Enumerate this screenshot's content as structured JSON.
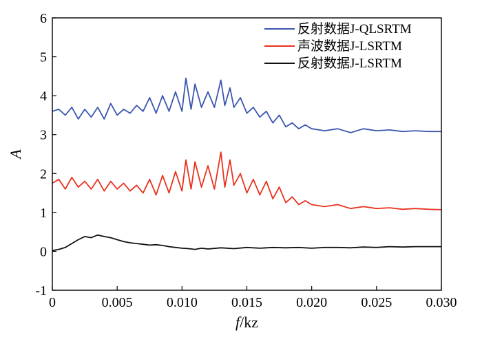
{
  "chart_data": {
    "type": "line",
    "title": "",
    "xlabel_italic": "f",
    "xlabel_unit": "/kz",
    "ylabel": "A",
    "xlim": [
      0,
      0.03
    ],
    "ylim": [
      -1,
      6
    ],
    "x_ticks": [
      "0",
      "0.005",
      "0.010",
      "0.015",
      "0.020",
      "0.025",
      "0.030"
    ],
    "y_ticks": [
      "-1",
      "0",
      "1",
      "2",
      "3",
      "4",
      "5",
      "6"
    ],
    "grid": false,
    "legend_position": "top-right",
    "series": [
      {
        "name": "反射数据J-QLSRTM",
        "color": "#3a56b0",
        "points": [
          [
            0,
            3.6
          ],
          [
            0.0005,
            3.65
          ],
          [
            0.001,
            3.5
          ],
          [
            0.0015,
            3.7
          ],
          [
            0.002,
            3.4
          ],
          [
            0.0025,
            3.65
          ],
          [
            0.003,
            3.45
          ],
          [
            0.0035,
            3.7
          ],
          [
            0.004,
            3.4
          ],
          [
            0.0045,
            3.8
          ],
          [
            0.005,
            3.5
          ],
          [
            0.0055,
            3.65
          ],
          [
            0.006,
            3.55
          ],
          [
            0.0065,
            3.75
          ],
          [
            0.007,
            3.6
          ],
          [
            0.0075,
            3.95
          ],
          [
            0.008,
            3.55
          ],
          [
            0.0085,
            4.0
          ],
          [
            0.009,
            3.6
          ],
          [
            0.0095,
            4.1
          ],
          [
            0.01,
            3.6
          ],
          [
            0.0103,
            4.45
          ],
          [
            0.0107,
            3.65
          ],
          [
            0.011,
            4.3
          ],
          [
            0.0115,
            3.7
          ],
          [
            0.012,
            4.1
          ],
          [
            0.0125,
            3.7
          ],
          [
            0.013,
            4.4
          ],
          [
            0.0133,
            3.75
          ],
          [
            0.0137,
            4.2
          ],
          [
            0.014,
            3.7
          ],
          [
            0.0145,
            3.95
          ],
          [
            0.015,
            3.55
          ],
          [
            0.0155,
            3.7
          ],
          [
            0.016,
            3.45
          ],
          [
            0.0165,
            3.6
          ],
          [
            0.017,
            3.3
          ],
          [
            0.0175,
            3.5
          ],
          [
            0.018,
            3.2
          ],
          [
            0.0185,
            3.3
          ],
          [
            0.019,
            3.15
          ],
          [
            0.0195,
            3.25
          ],
          [
            0.02,
            3.15
          ],
          [
            0.021,
            3.1
          ],
          [
            0.022,
            3.15
          ],
          [
            0.023,
            3.05
          ],
          [
            0.024,
            3.15
          ],
          [
            0.025,
            3.1
          ],
          [
            0.026,
            3.12
          ],
          [
            0.027,
            3.08
          ],
          [
            0.028,
            3.1
          ],
          [
            0.029,
            3.08
          ],
          [
            0.03,
            3.08
          ]
        ]
      },
      {
        "name": "声波数据J-LSRTM",
        "color": "#e8321e",
        "points": [
          [
            0,
            1.75
          ],
          [
            0.0005,
            1.85
          ],
          [
            0.001,
            1.6
          ],
          [
            0.0015,
            1.9
          ],
          [
            0.002,
            1.65
          ],
          [
            0.0025,
            1.8
          ],
          [
            0.003,
            1.6
          ],
          [
            0.0035,
            1.85
          ],
          [
            0.004,
            1.55
          ],
          [
            0.0045,
            1.8
          ],
          [
            0.005,
            1.6
          ],
          [
            0.0055,
            1.75
          ],
          [
            0.006,
            1.55
          ],
          [
            0.0065,
            1.7
          ],
          [
            0.007,
            1.5
          ],
          [
            0.0075,
            1.85
          ],
          [
            0.008,
            1.45
          ],
          [
            0.0085,
            1.95
          ],
          [
            0.009,
            1.5
          ],
          [
            0.0095,
            2.05
          ],
          [
            0.01,
            1.55
          ],
          [
            0.0103,
            2.35
          ],
          [
            0.0107,
            1.6
          ],
          [
            0.011,
            2.3
          ],
          [
            0.0115,
            1.65
          ],
          [
            0.012,
            2.2
          ],
          [
            0.0125,
            1.6
          ],
          [
            0.013,
            2.55
          ],
          [
            0.0133,
            1.65
          ],
          [
            0.0137,
            2.35
          ],
          [
            0.014,
            1.7
          ],
          [
            0.0145,
            2.0
          ],
          [
            0.015,
            1.5
          ],
          [
            0.0155,
            1.85
          ],
          [
            0.016,
            1.45
          ],
          [
            0.0165,
            1.8
          ],
          [
            0.017,
            1.35
          ],
          [
            0.0175,
            1.65
          ],
          [
            0.018,
            1.25
          ],
          [
            0.0185,
            1.4
          ],
          [
            0.019,
            1.2
          ],
          [
            0.0195,
            1.3
          ],
          [
            0.02,
            1.2
          ],
          [
            0.021,
            1.15
          ],
          [
            0.022,
            1.2
          ],
          [
            0.023,
            1.1
          ],
          [
            0.024,
            1.15
          ],
          [
            0.025,
            1.1
          ],
          [
            0.026,
            1.12
          ],
          [
            0.027,
            1.08
          ],
          [
            0.028,
            1.1
          ],
          [
            0.029,
            1.08
          ],
          [
            0.03,
            1.07
          ]
        ]
      },
      {
        "name": "反射数据J-LSRTM",
        "color": "#111111",
        "points": [
          [
            0,
            0.02
          ],
          [
            0.0005,
            0.05
          ],
          [
            0.001,
            0.1
          ],
          [
            0.0015,
            0.2
          ],
          [
            0.002,
            0.3
          ],
          [
            0.0025,
            0.38
          ],
          [
            0.003,
            0.35
          ],
          [
            0.0035,
            0.42
          ],
          [
            0.004,
            0.38
          ],
          [
            0.0045,
            0.35
          ],
          [
            0.005,
            0.3
          ],
          [
            0.0055,
            0.25
          ],
          [
            0.006,
            0.22
          ],
          [
            0.0065,
            0.2
          ],
          [
            0.007,
            0.18
          ],
          [
            0.0075,
            0.16
          ],
          [
            0.008,
            0.17
          ],
          [
            0.0085,
            0.15
          ],
          [
            0.009,
            0.12
          ],
          [
            0.0095,
            0.1
          ],
          [
            0.01,
            0.08
          ],
          [
            0.0105,
            0.07
          ],
          [
            0.011,
            0.05
          ],
          [
            0.0115,
            0.08
          ],
          [
            0.012,
            0.06
          ],
          [
            0.013,
            0.09
          ],
          [
            0.014,
            0.07
          ],
          [
            0.015,
            0.1
          ],
          [
            0.016,
            0.08
          ],
          [
            0.017,
            0.1
          ],
          [
            0.018,
            0.09
          ],
          [
            0.019,
            0.1
          ],
          [
            0.02,
            0.08
          ],
          [
            0.021,
            0.1
          ],
          [
            0.022,
            0.1
          ],
          [
            0.023,
            0.09
          ],
          [
            0.024,
            0.11
          ],
          [
            0.025,
            0.1
          ],
          [
            0.026,
            0.12
          ],
          [
            0.027,
            0.11
          ],
          [
            0.028,
            0.12
          ],
          [
            0.029,
            0.12
          ],
          [
            0.03,
            0.12
          ]
        ]
      }
    ]
  }
}
